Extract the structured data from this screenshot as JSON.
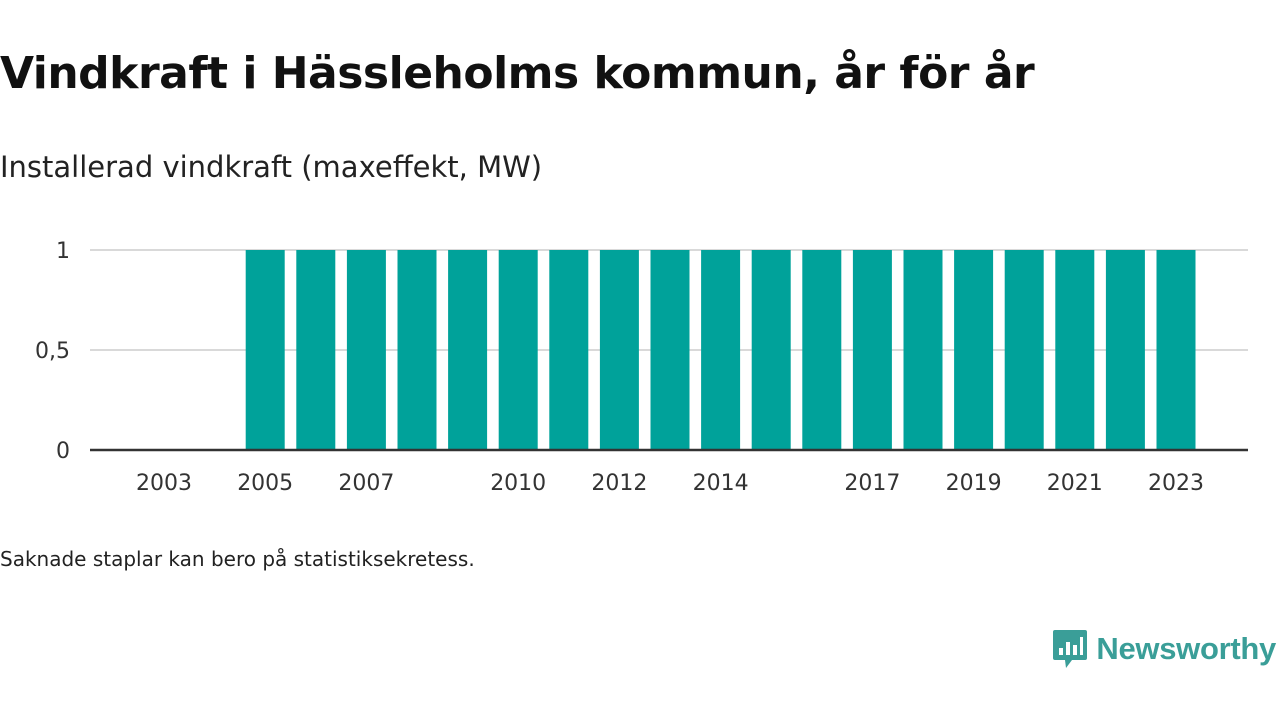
{
  "header": {
    "title": "Vindkraft i Hässleholms kommun, år för år",
    "subtitle": "Installerad vindkraft (maxeffekt, MW)"
  },
  "footnote": "Saknade staplar kan bero på statistiksekretess.",
  "logo": {
    "text": "Newsworthy",
    "icon": "newsworthy-logo-icon"
  },
  "colors": {
    "bar": "#00a29a",
    "grid": "#d9d9d9",
    "axis": "#333333",
    "logo": "#3a9e98"
  },
  "chart_data": {
    "type": "bar",
    "categories": [
      "2003",
      "2004",
      "2005",
      "2006",
      "2007",
      "2008",
      "2009",
      "2010",
      "2011",
      "2012",
      "2013",
      "2014",
      "2015",
      "2016",
      "2017",
      "2018",
      "2019",
      "2020",
      "2021",
      "2022",
      "2023"
    ],
    "values": [
      null,
      null,
      1,
      1,
      1,
      1,
      1,
      1,
      1,
      1,
      1,
      1,
      1,
      1,
      1,
      1,
      1,
      1,
      1,
      1,
      1
    ],
    "x_tick_labels": [
      "2003",
      "2005",
      "2007",
      "2010",
      "2012",
      "2014",
      "2017",
      "2019",
      "2021",
      "2023"
    ],
    "y_ticks": [
      0,
      0.5,
      1
    ],
    "y_tick_labels": [
      "0",
      "0,5",
      "1"
    ],
    "ylim": [
      0,
      1
    ],
    "grid": true,
    "legend": "none",
    "title": "Vindkraft i Hässleholms kommun, år för år",
    "ylabel": "Installerad vindkraft (maxeffekt, MW)",
    "xlabel": ""
  }
}
